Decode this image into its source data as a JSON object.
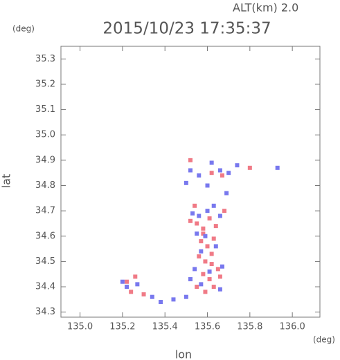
{
  "chart_data": {
    "type": "scatter",
    "title": "2015/10/23 17:35:37",
    "annotations": [
      "ALT(km) 2.0",
      "(deg)",
      "(deg)"
    ],
    "xlabel": "lon",
    "ylabel": "lat",
    "xlim": [
      134.91,
      136.13
    ],
    "ylim": [
      34.28,
      35.35
    ],
    "xticks": [
      {
        "value": 135,
        "label": "135.0"
      },
      135.2,
      135.4,
      135.6,
      135.8,
      {
        "value": 136,
        "label": "136.0"
      }
    ],
    "yticks": [
      34.3,
      34.4,
      34.5,
      34.6,
      34.7,
      34.8,
      34.9,
      {
        "value": 35,
        "label": "35.0"
      },
      35.1,
      35.2,
      35.3
    ],
    "series": [
      {
        "color": "#f07a86",
        "x": [
          135.52,
          135.55,
          135.58,
          135.61,
          135.64,
          135.57,
          135.6,
          135.63,
          135.56,
          135.59,
          135.62,
          135.65,
          135.58,
          135.61,
          135.66,
          135.55,
          135.63,
          135.59,
          135.26,
          135.22,
          135.24,
          135.3,
          135.52,
          135.62,
          135.67,
          135.8,
          135.68,
          135.54,
          135.58,
          135.62
        ],
        "values": [
          34.66,
          34.65,
          34.63,
          34.67,
          34.64,
          34.58,
          34.56,
          34.59,
          34.52,
          34.5,
          34.49,
          34.47,
          34.45,
          34.43,
          34.44,
          34.4,
          34.4,
          34.38,
          34.44,
          34.42,
          34.38,
          34.37,
          34.9,
          34.85,
          34.84,
          34.87,
          34.7,
          34.72,
          34.61,
          34.53
        ]
      },
      {
        "color": "#7878ee",
        "x": [
          135.53,
          135.56,
          135.6,
          135.63,
          135.66,
          135.55,
          135.59,
          135.64,
          135.57,
          135.54,
          135.61,
          135.67,
          135.52,
          135.57,
          135.66,
          135.5,
          135.44,
          135.38,
          135.34,
          135.22,
          135.27,
          135.2,
          135.52,
          135.56,
          135.62,
          135.66,
          135.7,
          135.74,
          135.93,
          135.6,
          135.69,
          135.5
        ],
        "values": [
          34.69,
          34.68,
          34.7,
          34.72,
          34.68,
          34.61,
          34.6,
          34.56,
          34.54,
          34.47,
          34.46,
          34.48,
          34.43,
          34.41,
          34.39,
          34.36,
          34.35,
          34.34,
          34.36,
          34.4,
          34.41,
          34.42,
          34.86,
          34.84,
          34.89,
          34.86,
          34.85,
          34.88,
          34.87,
          34.8,
          34.77,
          34.81
        ]
      }
    ]
  }
}
